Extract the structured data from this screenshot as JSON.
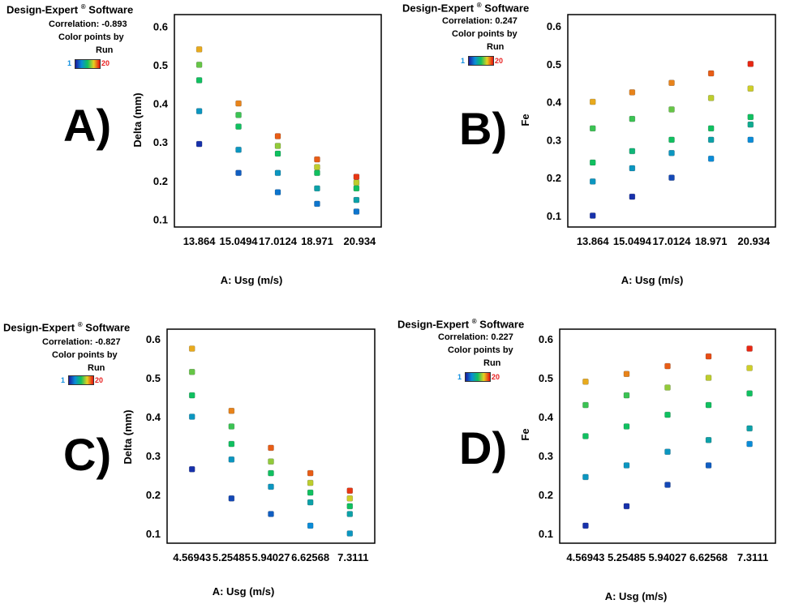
{
  "legend_colors": [
    "#1a1aa0",
    "#0a8cd8",
    "#10c060",
    "#e8d020",
    "#e81010"
  ],
  "chart_data": [
    {
      "type": "scatter",
      "panel_label": "A)",
      "software": "Design-Expert",
      "software_suffix": "Software",
      "correlation": "Correlation: -0.893",
      "color_by_line1": "Color points by",
      "color_by_line2": "Run",
      "legend_min": "1",
      "legend_max": "20",
      "xlabel": "A: Usg (m/s)",
      "ylabel": "Delta (mm)",
      "x_ticks": [
        "13.864",
        "15.0494",
        "17.0124",
        "18.971",
        "20.934"
      ],
      "y_ticks": [
        "0.1",
        "0.2",
        "0.3",
        "0.4",
        "0.5",
        "0.6"
      ],
      "ylim": [
        0.08,
        0.63
      ],
      "points": [
        {
          "x": 0,
          "y": 0.295,
          "c": 0.05
        },
        {
          "x": 0,
          "y": 0.38,
          "c": 0.3
        },
        {
          "x": 0,
          "y": 0.46,
          "c": 0.5
        },
        {
          "x": 0,
          "y": 0.5,
          "c": 0.6
        },
        {
          "x": 0,
          "y": 0.54,
          "c": 0.8
        },
        {
          "x": 1,
          "y": 0.22,
          "c": 0.15
        },
        {
          "x": 1,
          "y": 0.28,
          "c": 0.3
        },
        {
          "x": 1,
          "y": 0.34,
          "c": 0.5
        },
        {
          "x": 1,
          "y": 0.37,
          "c": 0.55
        },
        {
          "x": 1,
          "y": 0.4,
          "c": 0.85
        },
        {
          "x": 2,
          "y": 0.17,
          "c": 0.2
        },
        {
          "x": 2,
          "y": 0.22,
          "c": 0.3
        },
        {
          "x": 2,
          "y": 0.27,
          "c": 0.5
        },
        {
          "x": 2,
          "y": 0.29,
          "c": 0.65
        },
        {
          "x": 2,
          "y": 0.315,
          "c": 0.9
        },
        {
          "x": 3,
          "y": 0.14,
          "c": 0.2
        },
        {
          "x": 3,
          "y": 0.18,
          "c": 0.35
        },
        {
          "x": 3,
          "y": 0.22,
          "c": 0.5
        },
        {
          "x": 3,
          "y": 0.235,
          "c": 0.7
        },
        {
          "x": 3,
          "y": 0.255,
          "c": 0.9
        },
        {
          "x": 4,
          "y": 0.12,
          "c": 0.2
        },
        {
          "x": 4,
          "y": 0.15,
          "c": 0.35
        },
        {
          "x": 4,
          "y": 0.18,
          "c": 0.5
        },
        {
          "x": 4,
          "y": 0.195,
          "c": 0.7
        },
        {
          "x": 4,
          "y": 0.21,
          "c": 0.95
        }
      ]
    },
    {
      "type": "scatter",
      "panel_label": "B)",
      "software": "Design-Expert",
      "software_suffix": "Software",
      "correlation": "Correlation: 0.247",
      "color_by_line1": "Color points by",
      "color_by_line2": "Run",
      "legend_min": "1",
      "legend_max": "20",
      "xlabel": "A: Usg (m/s)",
      "ylabel": "Fe",
      "x_ticks": [
        "13.864",
        "15.0494",
        "17.0124",
        "18.971",
        "20.934"
      ],
      "y_ticks": [
        "0.1",
        "0.2",
        "0.3",
        "0.4",
        "0.5",
        "0.6"
      ],
      "ylim": [
        0.07,
        0.63
      ],
      "points": [
        {
          "x": 0,
          "y": 0.1,
          "c": 0.05
        },
        {
          "x": 0,
          "y": 0.19,
          "c": 0.3
        },
        {
          "x": 0,
          "y": 0.24,
          "c": 0.5
        },
        {
          "x": 0,
          "y": 0.33,
          "c": 0.55
        },
        {
          "x": 0,
          "y": 0.4,
          "c": 0.8
        },
        {
          "x": 1,
          "y": 0.15,
          "c": 0.05
        },
        {
          "x": 1,
          "y": 0.225,
          "c": 0.3
        },
        {
          "x": 1,
          "y": 0.27,
          "c": 0.45
        },
        {
          "x": 1,
          "y": 0.355,
          "c": 0.55
        },
        {
          "x": 1,
          "y": 0.425,
          "c": 0.85
        },
        {
          "x": 2,
          "y": 0.2,
          "c": 0.1
        },
        {
          "x": 2,
          "y": 0.265,
          "c": 0.3
        },
        {
          "x": 2,
          "y": 0.3,
          "c": 0.5
        },
        {
          "x": 2,
          "y": 0.38,
          "c": 0.6
        },
        {
          "x": 2,
          "y": 0.45,
          "c": 0.85
        },
        {
          "x": 3,
          "y": 0.25,
          "c": 0.25
        },
        {
          "x": 3,
          "y": 0.3,
          "c": 0.35
        },
        {
          "x": 3,
          "y": 0.33,
          "c": 0.5
        },
        {
          "x": 3,
          "y": 0.41,
          "c": 0.7
        },
        {
          "x": 3,
          "y": 0.475,
          "c": 0.9
        },
        {
          "x": 4,
          "y": 0.3,
          "c": 0.25
        },
        {
          "x": 4,
          "y": 0.34,
          "c": 0.4
        },
        {
          "x": 4,
          "y": 0.36,
          "c": 0.5
        },
        {
          "x": 4,
          "y": 0.435,
          "c": 0.72
        },
        {
          "x": 4,
          "y": 0.5,
          "c": 0.97
        }
      ]
    },
    {
      "type": "scatter",
      "panel_label": "C)",
      "software": "Design-Expert",
      "software_suffix": "Software",
      "correlation": "Correlation: -0.827",
      "color_by_line1": "Color points by",
      "color_by_line2": "Run",
      "legend_min": "1",
      "legend_max": "20",
      "xlabel": "A: Usg (m/s)",
      "ylabel": "Delta (mm)",
      "x_ticks": [
        "4.56943",
        "5.25485",
        "5.94027",
        "6.62568",
        "7.3111"
      ],
      "y_ticks": [
        "0.1",
        "0.2",
        "0.3",
        "0.4",
        "0.5",
        "0.6"
      ],
      "ylim": [
        0.075,
        0.625
      ],
      "points": [
        {
          "x": 0,
          "y": 0.265,
          "c": 0.05
        },
        {
          "x": 0,
          "y": 0.4,
          "c": 0.3
        },
        {
          "x": 0,
          "y": 0.455,
          "c": 0.5
        },
        {
          "x": 0,
          "y": 0.515,
          "c": 0.6
        },
        {
          "x": 0,
          "y": 0.575,
          "c": 0.8
        },
        {
          "x": 1,
          "y": 0.19,
          "c": 0.1
        },
        {
          "x": 1,
          "y": 0.29,
          "c": 0.3
        },
        {
          "x": 1,
          "y": 0.33,
          "c": 0.5
        },
        {
          "x": 1,
          "y": 0.375,
          "c": 0.55
        },
        {
          "x": 1,
          "y": 0.415,
          "c": 0.85
        },
        {
          "x": 2,
          "y": 0.15,
          "c": 0.15
        },
        {
          "x": 2,
          "y": 0.22,
          "c": 0.3
        },
        {
          "x": 2,
          "y": 0.255,
          "c": 0.5
        },
        {
          "x": 2,
          "y": 0.285,
          "c": 0.65
        },
        {
          "x": 2,
          "y": 0.32,
          "c": 0.9
        },
        {
          "x": 3,
          "y": 0.12,
          "c": 0.25
        },
        {
          "x": 3,
          "y": 0.18,
          "c": 0.35
        },
        {
          "x": 3,
          "y": 0.205,
          "c": 0.5
        },
        {
          "x": 3,
          "y": 0.23,
          "c": 0.7
        },
        {
          "x": 3,
          "y": 0.255,
          "c": 0.9
        },
        {
          "x": 4,
          "y": 0.1,
          "c": 0.3
        },
        {
          "x": 4,
          "y": 0.15,
          "c": 0.35
        },
        {
          "x": 4,
          "y": 0.17,
          "c": 0.5
        },
        {
          "x": 4,
          "y": 0.19,
          "c": 0.72
        },
        {
          "x": 4,
          "y": 0.21,
          "c": 0.95
        }
      ]
    },
    {
      "type": "scatter",
      "panel_label": "D)",
      "software": "Design-Expert",
      "software_suffix": "Software",
      "correlation": "Correlation: 0.227",
      "color_by_line1": "Color points by",
      "color_by_line2": "Run",
      "legend_min": "1",
      "legend_max": "20",
      "xlabel": "A: Usg (m/s)",
      "ylabel": "Fe",
      "x_ticks": [
        "4.56943",
        "5.25485",
        "5.94027",
        "6.62568",
        "7.3111"
      ],
      "y_ticks": [
        "0.1",
        "0.2",
        "0.3",
        "0.4",
        "0.5",
        "0.6"
      ],
      "ylim": [
        0.075,
        0.625
      ],
      "points": [
        {
          "x": 0,
          "y": 0.12,
          "c": 0.05
        },
        {
          "x": 0,
          "y": 0.245,
          "c": 0.3
        },
        {
          "x": 0,
          "y": 0.35,
          "c": 0.5
        },
        {
          "x": 0,
          "y": 0.43,
          "c": 0.55
        },
        {
          "x": 0,
          "y": 0.49,
          "c": 0.8
        },
        {
          "x": 1,
          "y": 0.17,
          "c": 0.05
        },
        {
          "x": 1,
          "y": 0.275,
          "c": 0.3
        },
        {
          "x": 1,
          "y": 0.375,
          "c": 0.5
        },
        {
          "x": 1,
          "y": 0.455,
          "c": 0.55
        },
        {
          "x": 1,
          "y": 0.51,
          "c": 0.85
        },
        {
          "x": 2,
          "y": 0.225,
          "c": 0.1
        },
        {
          "x": 2,
          "y": 0.31,
          "c": 0.3
        },
        {
          "x": 2,
          "y": 0.405,
          "c": 0.5
        },
        {
          "x": 2,
          "y": 0.475,
          "c": 0.65
        },
        {
          "x": 2,
          "y": 0.53,
          "c": 0.9
        },
        {
          "x": 3,
          "y": 0.275,
          "c": 0.15
        },
        {
          "x": 3,
          "y": 0.34,
          "c": 0.35
        },
        {
          "x": 3,
          "y": 0.43,
          "c": 0.5
        },
        {
          "x": 3,
          "y": 0.5,
          "c": 0.7
        },
        {
          "x": 3,
          "y": 0.555,
          "c": 0.92
        }
      ],
      "points_extra": [
        {
          "x": 4,
          "y": 0.33,
          "c": 0.25
        },
        {
          "x": 4,
          "y": 0.37,
          "c": 0.35
        },
        {
          "x": 4,
          "y": 0.46,
          "c": 0.5
        },
        {
          "x": 4,
          "y": 0.525,
          "c": 0.72
        },
        {
          "x": 4,
          "y": 0.575,
          "c": 0.97
        }
      ]
    }
  ]
}
